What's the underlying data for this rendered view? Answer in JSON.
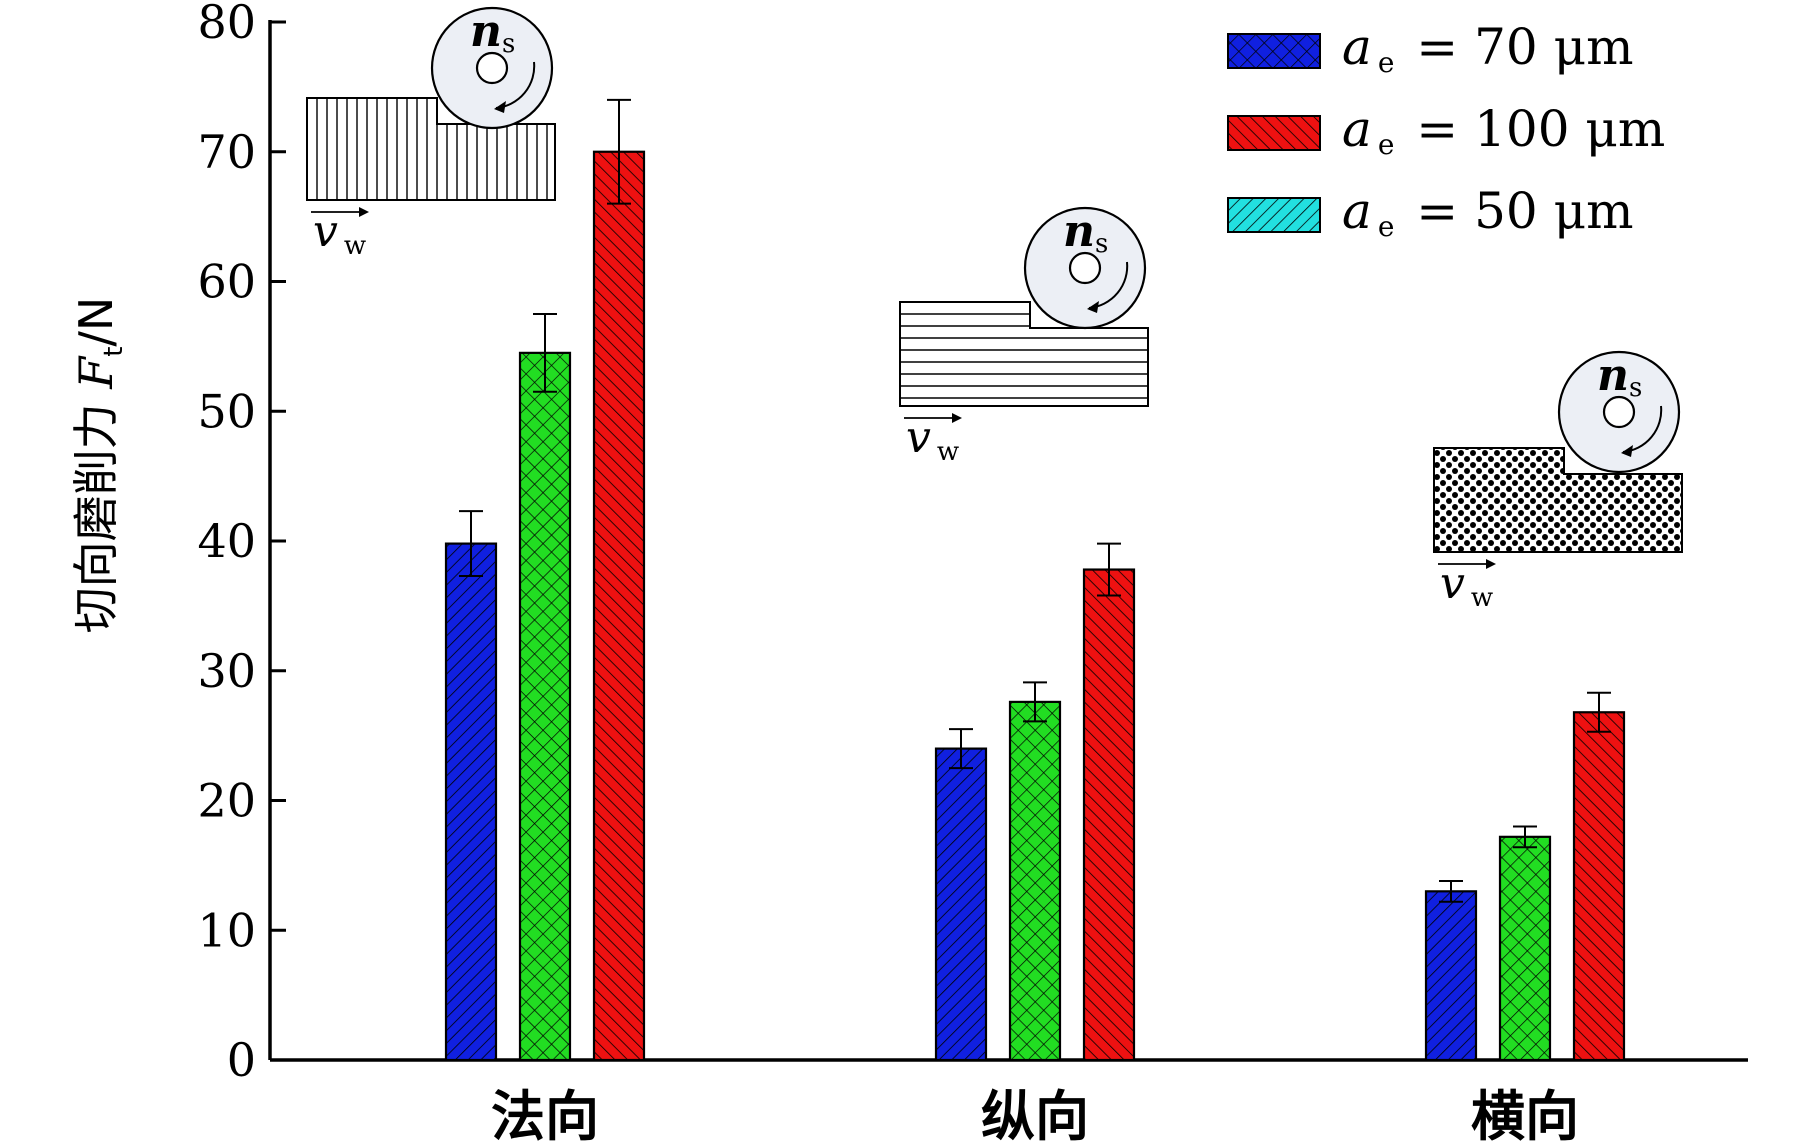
{
  "chart_data": {
    "type": "bar",
    "categories": [
      "法向",
      "纵向",
      "横向"
    ],
    "ylabel": "切向磨削力 F_t/N",
    "ylabel_parts": {
      "text": "切向磨削力 ",
      "symbol": "F",
      "subscript": "t",
      "unit": "/N"
    },
    "ylim": [
      0,
      80
    ],
    "yticks": [
      0,
      10,
      20,
      30,
      40,
      50,
      60,
      70,
      80
    ],
    "grid": false,
    "legend_position": "top-right",
    "series": [
      {
        "name": "a_e = 70 μm",
        "values": [
          39.8,
          24.0,
          13.0
        ],
        "errors": [
          2.5,
          1.5,
          0.8
        ],
        "color": "#1020e0",
        "legend_pattern": "crosshatch",
        "bar_pattern": "diag-right"
      },
      {
        "name": "a_e = 50 μm",
        "values": [
          54.5,
          27.6,
          17.2
        ],
        "errors": [
          3.0,
          1.5,
          0.8
        ],
        "color": "#22dd22",
        "legend_pattern": "diag-right",
        "legend_color": "#22e0e0",
        "bar_pattern": "crosshatch"
      },
      {
        "name": "a_e = 100 μm",
        "values": [
          70.0,
          37.8,
          26.8
        ],
        "errors": [
          4.0,
          2.0,
          1.5
        ],
        "color": "#ee1111",
        "legend_pattern": "diag-left",
        "bar_pattern": "diag-left"
      }
    ],
    "legend": [
      {
        "symbol": "a",
        "subscript": "e",
        "rest": " = 70 μm",
        "series": 0
      },
      {
        "symbol": "a",
        "subscript": "e",
        "rest": " = 100 μm",
        "series": 2
      },
      {
        "symbol": "a",
        "subscript": "e",
        "rest": " = 50 μm",
        "series": 1
      }
    ],
    "insets": [
      {
        "label_wheel": "n",
        "label_wheel_sub": "s",
        "label_feed": "v",
        "label_feed_sub": "w",
        "texture": "vertical-lines"
      },
      {
        "label_wheel": "n",
        "label_wheel_sub": "s",
        "label_feed": "v",
        "label_feed_sub": "w",
        "texture": "horizontal-lines"
      },
      {
        "label_wheel": "n",
        "label_wheel_sub": "s",
        "label_feed": "v",
        "label_feed_sub": "w",
        "texture": "dots"
      }
    ]
  }
}
